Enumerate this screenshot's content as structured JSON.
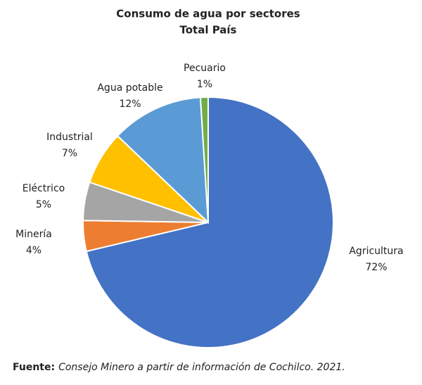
{
  "chart_data": {
    "type": "pie",
    "title": "Consumo de agua por sectores",
    "subtitle": "Total País",
    "categories": [
      "Agricultura",
      "Minería",
      "Eléctrico",
      "Industrial",
      "Agua potable",
      "Pecuario"
    ],
    "values": [
      72,
      4,
      5,
      7,
      12,
      1
    ],
    "value_labels": [
      "72%",
      "4%",
      "5%",
      "7%",
      "12%",
      "1%"
    ],
    "colors": [
      "#4472c4",
      "#ed7d31",
      "#a5a5a5",
      "#ffc000",
      "#5b9bd5",
      "#70ad47"
    ],
    "source_label": "Fuente:",
    "source": "Consejo Minero a partir de información de Cochilco. 2021."
  }
}
